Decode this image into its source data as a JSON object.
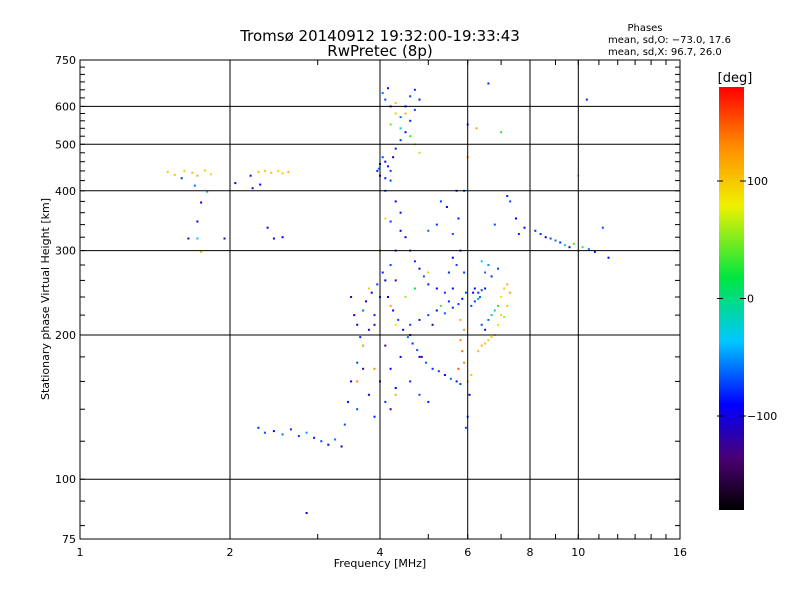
{
  "chart_data": {
    "type": "scatter",
    "title": "Tromsø 20140912 19:32:00-19:33:43",
    "subtitle": "RwPretec (8p)",
    "stats": {
      "heading": "Phases",
      "line1": "mean, sd,O: −73.0, 17.6",
      "line2": "mean, sd,X:  96.7, 26.0"
    },
    "xlabel": "Frequency [MHz]",
    "ylabel": "Stationary phase Virtual Height [km]",
    "x_scale": "log",
    "y_scale": "log",
    "xlim": [
      1,
      16
    ],
    "ylim": [
      75,
      750
    ],
    "x_ticks": [
      {
        "v": 1,
        "label": "1"
      },
      {
        "v": 2,
        "label": "2"
      },
      {
        "v": 4,
        "label": "4"
      },
      {
        "v": 6,
        "label": "6"
      },
      {
        "v": 8,
        "label": "8"
      },
      {
        "v": 10,
        "label": "10"
      },
      {
        "v": 16,
        "label": "16"
      }
    ],
    "y_ticks": [
      {
        "v": 75,
        "label": "75"
      },
      {
        "v": 100,
        "label": "100"
      },
      {
        "v": 200,
        "label": "200"
      },
      {
        "v": 300,
        "label": "300"
      },
      {
        "v": 400,
        "label": "400"
      },
      {
        "v": 500,
        "label": "500"
      },
      {
        "v": 600,
        "label": "600"
      },
      {
        "v": 750,
        "label": "750"
      }
    ],
    "x_grid": [
      2,
      4,
      6,
      8,
      10
    ],
    "y_grid": [
      100,
      200,
      300,
      400,
      500,
      600
    ],
    "grid": true,
    "colorbar": {
      "label": "[deg]",
      "range": [
        -180,
        180
      ],
      "ticks": [
        {
          "v": 100,
          "label": "100"
        },
        {
          "v": 0,
          "label": "0"
        },
        {
          "v": -100,
          "label": "−100"
        }
      ]
    },
    "points": [
      [
        1.5,
        438,
        98
      ],
      [
        1.55,
        432,
        102
      ],
      [
        1.62,
        440,
        95
      ],
      [
        1.68,
        436,
        105
      ],
      [
        1.72,
        430,
        110
      ],
      [
        1.78,
        441,
        100
      ],
      [
        1.83,
        433,
        92
      ],
      [
        1.6,
        425,
        -80
      ],
      [
        1.7,
        410,
        -60
      ],
      [
        1.8,
        398,
        -20
      ],
      [
        1.75,
        378,
        -95
      ],
      [
        1.72,
        345,
        -100
      ],
      [
        1.65,
        318,
        -110
      ],
      [
        1.72,
        318,
        -30
      ],
      [
        1.75,
        298,
        100
      ],
      [
        1.95,
        318,
        -105
      ],
      [
        2.05,
        415,
        -100
      ],
      [
        2.2,
        430,
        -90
      ],
      [
        2.28,
        438,
        105
      ],
      [
        2.35,
        440,
        98
      ],
      [
        2.42,
        436,
        102
      ],
      [
        2.5,
        440,
        95
      ],
      [
        2.55,
        435,
        100
      ],
      [
        2.62,
        438,
        108
      ],
      [
        2.3,
        412,
        -95
      ],
      [
        2.22,
        405,
        -110
      ],
      [
        2.38,
        335,
        -105
      ],
      [
        2.45,
        318,
        -100
      ],
      [
        2.55,
        320,
        -90
      ],
      [
        2.28,
        128,
        -80
      ],
      [
        2.35,
        125,
        -70
      ],
      [
        2.45,
        126,
        -90
      ],
      [
        2.55,
        124,
        -60
      ],
      [
        2.65,
        127,
        -80
      ],
      [
        2.75,
        123,
        -75
      ],
      [
        2.85,
        125,
        -50
      ],
      [
        2.95,
        122,
        -85
      ],
      [
        3.05,
        120,
        -70
      ],
      [
        3.15,
        118,
        -90
      ],
      [
        3.25,
        121,
        -60
      ],
      [
        3.35,
        117,
        -100
      ],
      [
        3.4,
        130,
        -70
      ],
      [
        3.45,
        145,
        -85
      ],
      [
        3.5,
        160,
        -95
      ],
      [
        3.6,
        175,
        -70
      ],
      [
        3.7,
        190,
        -90
      ],
      [
        3.8,
        205,
        -100
      ],
      [
        3.9,
        220,
        -80
      ],
      [
        4.0,
        240,
        -75
      ],
      [
        4.1,
        260,
        -90
      ],
      [
        4.2,
        280,
        -70
      ],
      [
        4.3,
        300,
        -85
      ],
      [
        4.4,
        330,
        -95
      ],
      [
        3.55,
        220,
        -95
      ],
      [
        3.6,
        210,
        -110
      ],
      [
        3.65,
        198,
        -80
      ],
      [
        3.7,
        225,
        -60
      ],
      [
        3.75,
        235,
        -100
      ],
      [
        3.85,
        245,
        -90
      ],
      [
        3.95,
        255,
        -75
      ],
      [
        4.05,
        270,
        -85
      ],
      [
        4.15,
        240,
        -100
      ],
      [
        4.25,
        225,
        -90
      ],
      [
        4.35,
        215,
        -70
      ],
      [
        4.45,
        205,
        -95
      ],
      [
        4.55,
        198,
        -60
      ],
      [
        4.65,
        192,
        -80
      ],
      [
        4.75,
        186,
        -70
      ],
      [
        4.85,
        180,
        -90
      ],
      [
        4.95,
        175,
        -65
      ],
      [
        5.1,
        170,
        -80
      ],
      [
        5.25,
        168,
        -75
      ],
      [
        5.4,
        165,
        -90
      ],
      [
        5.55,
        162,
        -60
      ],
      [
        5.7,
        160,
        -85
      ],
      [
        5.8,
        158,
        -70
      ],
      [
        4.6,
        210,
        -75
      ],
      [
        4.8,
        215,
        -85
      ],
      [
        5.0,
        220,
        -70
      ],
      [
        5.2,
        225,
        -90
      ],
      [
        5.4,
        222,
        -65
      ],
      [
        5.6,
        228,
        -80
      ],
      [
        5.75,
        232,
        -75
      ],
      [
        5.85,
        238,
        -95
      ],
      [
        5.95,
        245,
        -70
      ],
      [
        4.4,
        180,
        -90
      ],
      [
        4.2,
        170,
        -95
      ],
      [
        4.0,
        160,
        -80
      ],
      [
        3.8,
        150,
        -100
      ],
      [
        3.6,
        140,
        -70
      ],
      [
        3.9,
        135,
        -85
      ],
      [
        4.1,
        145,
        -75
      ],
      [
        4.3,
        155,
        -90
      ],
      [
        4.6,
        160,
        -80
      ],
      [
        4.8,
        150,
        -70
      ],
      [
        5.0,
        145,
        -85
      ],
      [
        4.2,
        345,
        -80
      ],
      [
        4.3,
        380,
        -100
      ],
      [
        4.1,
        400,
        -70
      ],
      [
        4.4,
        360,
        -85
      ],
      [
        4.5,
        320,
        -90
      ],
      [
        4.6,
        300,
        -75
      ],
      [
        4.7,
        285,
        -80
      ],
      [
        4.8,
        275,
        -95
      ],
      [
        4.9,
        265,
        -70
      ],
      [
        5.0,
        255,
        -85
      ],
      [
        5.2,
        250,
        -90
      ],
      [
        5.4,
        245,
        -75
      ],
      [
        3.95,
        440,
        -80
      ],
      [
        4.0,
        455,
        -90
      ],
      [
        4.05,
        470,
        -70
      ],
      [
        4.1,
        460,
        -100
      ],
      [
        4.15,
        450,
        -85
      ],
      [
        4.2,
        440,
        -75
      ],
      [
        4.25,
        470,
        -90
      ],
      [
        4.0,
        430,
        -95
      ],
      [
        4.1,
        425,
        -80
      ],
      [
        4.2,
        420,
        -70
      ],
      [
        3.98,
        445,
        -60
      ],
      [
        4.3,
        490,
        -85
      ],
      [
        4.4,
        510,
        -75
      ],
      [
        4.5,
        530,
        -90
      ],
      [
        4.6,
        560,
        -80
      ],
      [
        4.7,
        590,
        -70
      ],
      [
        4.8,
        620,
        -85
      ],
      [
        4.4,
        570,
        -60
      ],
      [
        4.5,
        600,
        -95
      ],
      [
        4.6,
        630,
        -75
      ],
      [
        4.7,
        650,
        -80
      ],
      [
        4.2,
        600,
        -90
      ],
      [
        4.1,
        620,
        -70
      ],
      [
        4.2,
        550,
        40
      ],
      [
        4.3,
        580,
        100
      ],
      [
        4.5,
        580,
        110
      ],
      [
        4.6,
        520,
        30
      ],
      [
        4.4,
        540,
        -20
      ],
      [
        4.7,
        500,
        90
      ],
      [
        4.8,
        480,
        60
      ],
      [
        4.3,
        610,
        100
      ],
      [
        4.05,
        640,
        -60
      ],
      [
        4.15,
        655,
        -85
      ],
      [
        3.8,
        250,
        100
      ],
      [
        4.0,
        300,
        110
      ],
      [
        4.1,
        350,
        90
      ],
      [
        4.2,
        230,
        120
      ],
      [
        4.3,
        210,
        80
      ],
      [
        3.7,
        190,
        100
      ],
      [
        3.9,
        170,
        130
      ],
      [
        4.5,
        240,
        60
      ],
      [
        4.7,
        250,
        20
      ],
      [
        5.0,
        270,
        100
      ],
      [
        5.3,
        230,
        40
      ],
      [
        4.3,
        150,
        110
      ],
      [
        3.6,
        160,
        130
      ],
      [
        3.9,
        210,
        -120
      ],
      [
        4.1,
        190,
        -130
      ],
      [
        4.3,
        260,
        -125
      ],
      [
        3.7,
        170,
        -125
      ],
      [
        4.6,
        200,
        -140
      ],
      [
        3.5,
        240,
        -130
      ],
      [
        4.2,
        140,
        -120
      ],
      [
        5.1,
        210,
        -125
      ],
      [
        4.8,
        180,
        -130
      ],
      [
        5.5,
        270,
        -80
      ],
      [
        5.6,
        290,
        -90
      ],
      [
        5.7,
        280,
        -70
      ],
      [
        5.8,
        300,
        -85
      ],
      [
        5.9,
        270,
        -75
      ],
      [
        5.6,
        250,
        -90
      ],
      [
        5.5,
        235,
        -80
      ],
      [
        5.6,
        325,
        -70
      ],
      [
        5.75,
        350,
        -85
      ],
      [
        5.9,
        400,
        -70
      ],
      [
        5.45,
        370,
        -90
      ],
      [
        5.2,
        340,
        -80
      ],
      [
        5.0,
        330,
        -60
      ],
      [
        5.3,
        380,
        -75
      ],
      [
        6.2,
        250,
        -90
      ],
      [
        6.3,
        245,
        -80
      ],
      [
        6.4,
        248,
        -70
      ],
      [
        6.35,
        240,
        -60
      ],
      [
        6.5,
        250,
        -85
      ],
      [
        6.3,
        238,
        -50
      ],
      [
        6.2,
        235,
        -75
      ],
      [
        6.1,
        230,
        -70
      ],
      [
        6.15,
        245,
        -95
      ],
      [
        6.4,
        210,
        -70
      ],
      [
        6.5,
        205,
        -85
      ],
      [
        6.6,
        215,
        -60
      ],
      [
        6.7,
        220,
        -40
      ],
      [
        6.8,
        225,
        -20
      ],
      [
        6.9,
        230,
        30
      ],
      [
        7.0,
        240,
        80
      ],
      [
        7.1,
        250,
        100
      ],
      [
        7.2,
        255,
        110
      ],
      [
        7.3,
        245,
        120
      ],
      [
        7.2,
        230,
        105
      ],
      [
        7.0,
        220,
        95
      ],
      [
        6.8,
        200,
        90
      ],
      [
        6.6,
        195,
        100
      ],
      [
        6.4,
        190,
        110
      ],
      [
        6.3,
        185,
        105
      ],
      [
        6.5,
        192,
        100
      ],
      [
        6.7,
        198,
        95
      ],
      [
        6.9,
        210,
        80
      ],
      [
        7.1,
        218,
        60
      ],
      [
        6.5,
        270,
        -60
      ],
      [
        6.7,
        265,
        -80
      ],
      [
        6.9,
        275,
        -70
      ],
      [
        6.6,
        280,
        -50
      ],
      [
        6.4,
        285,
        -30
      ],
      [
        5.8,
        195,
        130
      ],
      [
        5.85,
        185,
        140
      ],
      [
        5.9,
        175,
        130
      ],
      [
        5.75,
        170,
        150
      ],
      [
        6.0,
        160,
        110
      ],
      [
        6.05,
        150,
        -90
      ],
      [
        6.0,
        135,
        -80
      ],
      [
        5.95,
        128,
        -70
      ],
      [
        6.1,
        165,
        100
      ],
      [
        5.9,
        205,
        120
      ],
      [
        5.8,
        215,
        110
      ],
      [
        6.0,
        550,
        -80
      ],
      [
        6.25,
        540,
        120
      ],
      [
        7.0,
        530,
        30
      ],
      [
        6.0,
        470,
        130
      ],
      [
        5.7,
        400,
        -80
      ],
      [
        7.2,
        390,
        -80
      ],
      [
        7.3,
        380,
        -70
      ],
      [
        7.5,
        350,
        -90
      ],
      [
        7.8,
        335,
        -100
      ],
      [
        7.6,
        325,
        -80
      ],
      [
        6.8,
        340,
        -70
      ],
      [
        8.2,
        330,
        -80
      ],
      [
        8.4,
        325,
        -75
      ],
      [
        8.6,
        320,
        -90
      ],
      [
        8.8,
        318,
        -70
      ],
      [
        9.0,
        315,
        -60
      ],
      [
        9.2,
        312,
        -80
      ],
      [
        9.4,
        308,
        -20
      ],
      [
        9.6,
        305,
        -90
      ],
      [
        9.8,
        310,
        40
      ],
      [
        10.0,
        300,
        -20
      ],
      [
        10.2,
        305,
        30
      ],
      [
        10.5,
        302,
        -60
      ],
      [
        10.8,
        298,
        -80
      ],
      [
        11.5,
        290,
        -90
      ],
      [
        11.2,
        335,
        -70
      ],
      [
        10.0,
        430,
        100
      ],
      [
        10.4,
        620,
        -80
      ],
      [
        2.85,
        85,
        -100
      ],
      [
        6.6,
        670,
        -80
      ]
    ]
  }
}
